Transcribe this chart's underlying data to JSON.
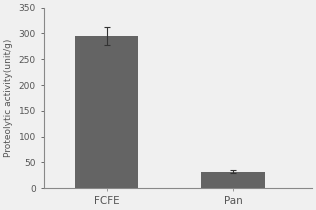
{
  "categories": [
    "FCFE",
    "Pan"
  ],
  "values": [
    295,
    32
  ],
  "errors": [
    18,
    3
  ],
  "bar_color": "#646464",
  "bar_width": 0.4,
  "x_positions": [
    0.3,
    1.1
  ],
  "xlim": [
    -0.1,
    1.6
  ],
  "ylim": [
    0,
    350
  ],
  "yticks": [
    0,
    50,
    100,
    150,
    200,
    250,
    300,
    350
  ],
  "ylabel": "Proteolytic activity(unit/g)",
  "ylabel_fontsize": 6.5,
  "tick_fontsize": 6.5,
  "xtick_fontsize": 7.5,
  "background_color": "#f0f0f0",
  "error_color": "#333333",
  "error_capsize": 2,
  "error_linewidth": 0.8,
  "spine_color": "#888888"
}
